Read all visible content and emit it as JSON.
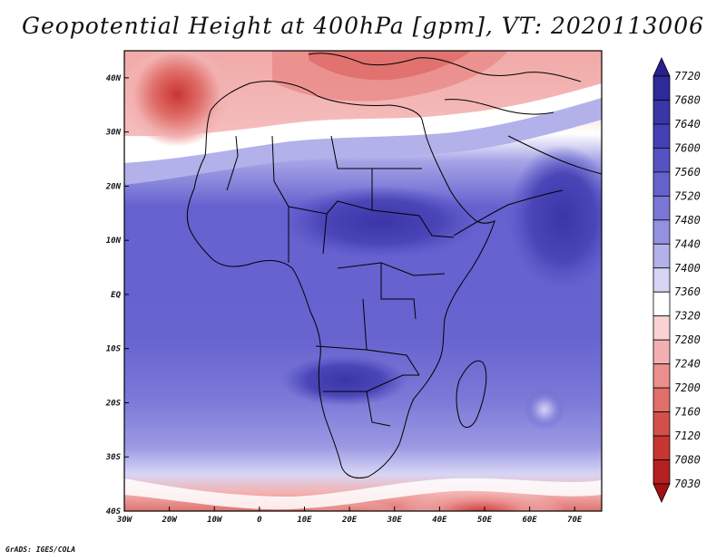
{
  "title": "Geopotential Height at 400hPa [gpm], VT: 2020113006",
  "credit": "GrADS: IGES/COLA",
  "map": {
    "region": "Africa",
    "lon_range": [
      -30,
      76
    ],
    "lat_range": [
      -40,
      45
    ],
    "x_ticks": [
      {
        "lon": -30,
        "label": "30W"
      },
      {
        "lon": -20,
        "label": "20W"
      },
      {
        "lon": -10,
        "label": "10W"
      },
      {
        "lon": 0,
        "label": "0"
      },
      {
        "lon": 10,
        "label": "10E"
      },
      {
        "lon": 20,
        "label": "20E"
      },
      {
        "lon": 30,
        "label": "30E"
      },
      {
        "lon": 40,
        "label": "40E"
      },
      {
        "lon": 50,
        "label": "50E"
      },
      {
        "lon": 60,
        "label": "60E"
      },
      {
        "lon": 70,
        "label": "70E"
      }
    ],
    "y_ticks": [
      {
        "lat": 40,
        "label": "40N"
      },
      {
        "lat": 30,
        "label": "30N"
      },
      {
        "lat": 20,
        "label": "20N"
      },
      {
        "lat": 10,
        "label": "10N"
      },
      {
        "lat": 0,
        "label": "EQ"
      },
      {
        "lat": -10,
        "label": "10S"
      },
      {
        "lat": -20,
        "label": "20S"
      },
      {
        "lat": -30,
        "label": "30S"
      },
      {
        "lat": -40,
        "label": "40S"
      }
    ]
  },
  "colorbar": {
    "levels": [
      "7720",
      "7680",
      "7640",
      "7600",
      "7560",
      "7520",
      "7480",
      "7440",
      "7400",
      "7360",
      "7320",
      "7280",
      "7240",
      "7200",
      "7160",
      "7120",
      "7080",
      "7030"
    ],
    "colors": [
      "#2a1f8c",
      "#2e2a9a",
      "#3a36a8",
      "#4440b4",
      "#5652c2",
      "#6662cc",
      "#7a77d6",
      "#9391e0",
      "#b3b1ea",
      "#d6d5f5",
      "#ffffff",
      "#f9d3d3",
      "#f2b1b0",
      "#ea8f8d",
      "#e06f6b",
      "#d4504b",
      "#c83532",
      "#b52020",
      "#a21212"
    ]
  }
}
